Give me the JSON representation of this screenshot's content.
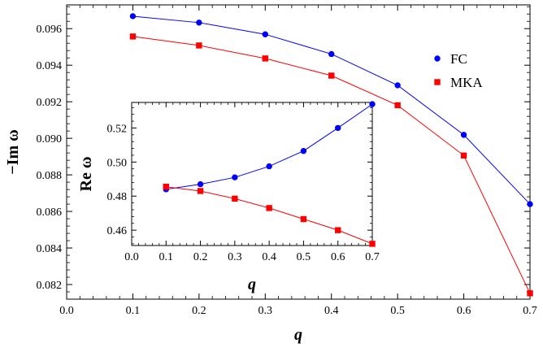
{
  "chart_data": [
    {
      "id": "main",
      "type": "line",
      "title": "",
      "xlabel": "q",
      "ylabel": "−Im ω",
      "xlim": [
        0.0,
        0.7
      ],
      "ylim": [
        0.0812,
        0.0973
      ],
      "x_ticks": [
        "0.0",
        "0.1",
        "0.2",
        "0.3",
        "0.4",
        "0.5",
        "0.6",
        "0.7"
      ],
      "y_ticks": [
        "0.082",
        "0.084",
        "0.086",
        "0.088",
        "0.090",
        "0.092",
        "0.094",
        "0.096"
      ],
      "legend": {
        "position": "right",
        "entries": [
          {
            "label": "FC",
            "color": "#0000ff",
            "marker": "circle"
          },
          {
            "label": "MKA",
            "color": "#ff0000",
            "marker": "square"
          }
        ]
      },
      "series": [
        {
          "name": "FC",
          "color": "#0000ff",
          "marker": "circle",
          "x": [
            0.1,
            0.2,
            0.3,
            0.4,
            0.5,
            0.6,
            0.7
          ],
          "y": [
            0.09668,
            0.09633,
            0.09569,
            0.09461,
            0.0929,
            0.09019,
            0.0864
          ]
        },
        {
          "name": "MKA",
          "color": "#ff0000",
          "marker": "square",
          "x": [
            0.1,
            0.2,
            0.3,
            0.4,
            0.5,
            0.6,
            0.7
          ],
          "y": [
            0.09557,
            0.09508,
            0.09437,
            0.09343,
            0.09181,
            0.08906,
            0.08152
          ]
        }
      ]
    },
    {
      "id": "inset",
      "type": "line",
      "title": "",
      "xlabel": "q",
      "ylabel": "Re ω",
      "xlim": [
        0.0,
        0.7
      ],
      "ylim": [
        0.451,
        0.535
      ],
      "x_ticks": [
        "0.0",
        "0.1",
        "0.2",
        "0.3",
        "0.4",
        "0.5",
        "0.6",
        "0.7"
      ],
      "y_ticks": [
        "0.46",
        "0.48",
        "0.50",
        "0.52"
      ],
      "series": [
        {
          "name": "FC",
          "color": "#0000ff",
          "marker": "circle",
          "x": [
            0.1,
            0.2,
            0.3,
            0.4,
            0.5,
            0.6,
            0.7
          ],
          "y": [
            0.484,
            0.487,
            0.491,
            0.4975,
            0.5065,
            0.52,
            0.534
          ]
        },
        {
          "name": "MKA",
          "color": "#ff0000",
          "marker": "square",
          "x": [
            0.1,
            0.2,
            0.3,
            0.4,
            0.5,
            0.6,
            0.7
          ],
          "y": [
            0.4855,
            0.483,
            0.4785,
            0.473,
            0.4665,
            0.46,
            0.452
          ]
        }
      ]
    }
  ]
}
